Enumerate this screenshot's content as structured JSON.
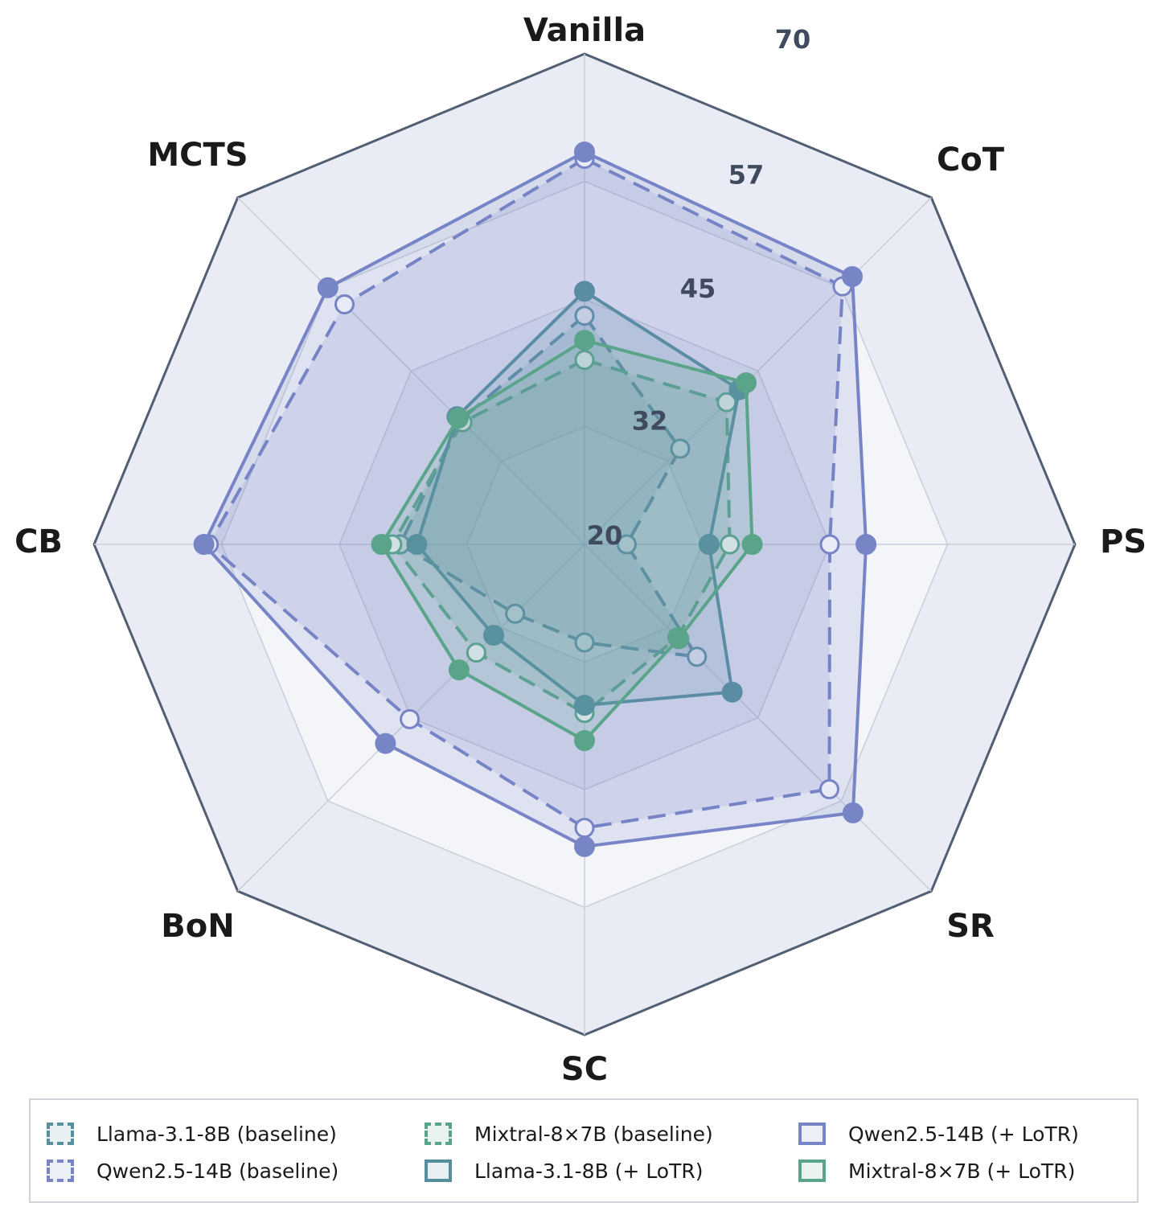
{
  "chart_data": {
    "type": "radar",
    "axes": [
      "Vanilla",
      "CoT",
      "PS",
      "SR",
      "SC",
      "BoN",
      "CB",
      "MCTS"
    ],
    "rlim": [
      20,
      70
    ],
    "ticks": [
      "20",
      "32",
      "45",
      "57",
      "70"
    ],
    "tick_values": [
      20,
      32,
      45,
      57,
      70
    ],
    "series": [
      {
        "name": "Llama-3.1-8B (baseline)",
        "color": "#5a8fa0",
        "style": "dashed",
        "markers": "hollow",
        "values": [
          43.3,
          33.8,
          24.3,
          36.2,
          30.0,
          30.0,
          38.8,
          37.9
        ]
      },
      {
        "name": "Qwen2.5-14B (baseline)",
        "color": "#7785c6",
        "style": "dashed",
        "markers": "hollow",
        "values": [
          59.3,
          57.2,
          45.0,
          55.3,
          48.9,
          45.2,
          58.3,
          54.6
        ]
      },
      {
        "name": "Mixtral-8×7B (baseline)",
        "color": "#5aa58a",
        "style": "dashed",
        "markers": "hollow",
        "values": [
          38.8,
          40.5,
          34.8,
          33.4,
          37.2,
          35.6,
          39.6,
          37.6
        ]
      },
      {
        "name": "Llama-3.1-8B (+ LoTR)",
        "color": "#558f9e",
        "style": "solid",
        "markers": "filled",
        "values": [
          45.8,
          42.3,
          32.7,
          41.3,
          36.4,
          33.1,
          37.1,
          38.4
        ]
      },
      {
        "name": "Qwen2.5-14B (+ LoTR)",
        "color": "#7785c6",
        "style": "solid",
        "markers": "filled",
        "values": [
          60.0,
          58.6,
          48.7,
          58.7,
          50.8,
          48.7,
          58.8,
          57.0
        ]
      },
      {
        "name": "Mixtral-8×7B (+ LoTR)",
        "color": "#5aa58a",
        "style": "solid",
        "markers": "filled",
        "values": [
          40.8,
          43.3,
          37.1,
          33.6,
          40.0,
          38.1,
          40.7,
          38.2
        ]
      }
    ],
    "title": "",
    "grid": true,
    "legend_position": "bottom"
  }
}
